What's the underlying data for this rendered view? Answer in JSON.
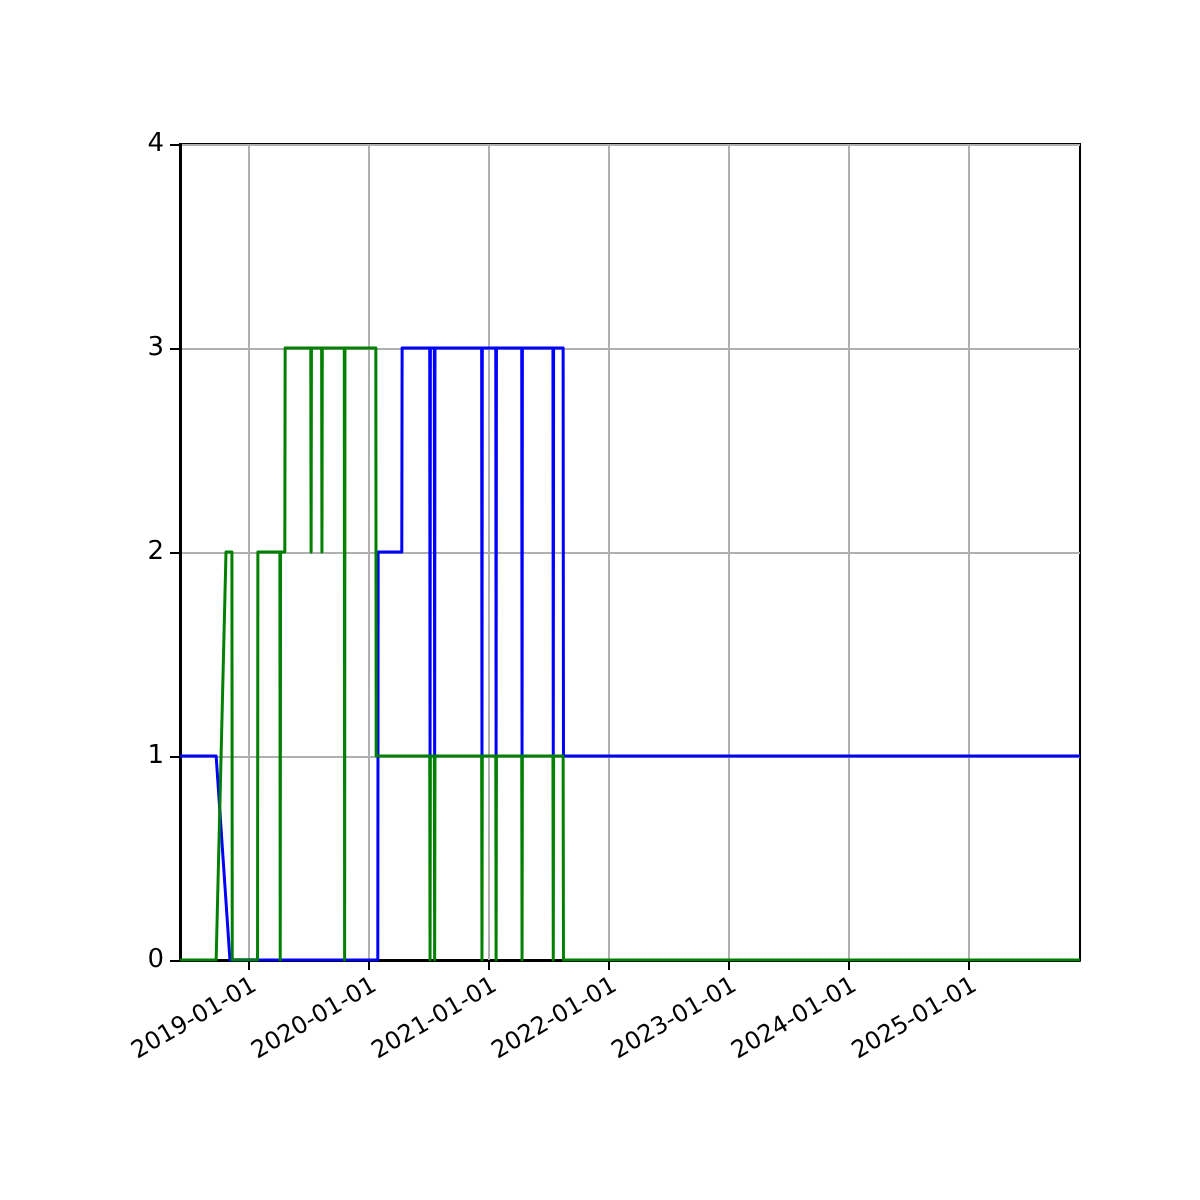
{
  "chart_data": {
    "type": "line",
    "x": [
      "2018-06-08",
      "2018-09-26",
      "2018-11-07",
      "2020-01-31",
      "2020-02-01",
      "2020-04-13",
      "2020-04-14",
      "2020-07-07",
      "2020-07-08",
      "2020-07-09",
      "2020-07-21",
      "2020-07-22",
      "2020-07-23",
      "2020-12-12",
      "2020-12-13",
      "2020-12-14",
      "2021-01-24",
      "2021-01-25",
      "2021-01-26",
      "2021-04-13",
      "2021-04-14",
      "2021-04-15",
      "2021-07-17",
      "2021-07-18",
      "2021-07-19",
      "2021-08-17",
      "2021-08-18",
      "2025-12-07"
    ],
    "series": [
      {
        "color": "#0000ff",
        "values": [
          1,
          1,
          0,
          0,
          2,
          2,
          3,
          3,
          1,
          3,
          3,
          1,
          3,
          3,
          1,
          3,
          3,
          1,
          3,
          3,
          1,
          3,
          3,
          1,
          3,
          3,
          1,
          1
        ]
      },
      {
        "color": "#008000",
        "x": [
          "2018-06-08",
          "2018-09-26",
          "2018-10-26",
          "2018-11-13",
          "2018-11-14",
          "2019-01-30",
          "2019-01-31",
          "2019-04-08",
          "2019-04-09",
          "2019-04-10",
          "2019-04-23",
          "2019-04-24",
          "2019-07-11",
          "2019-07-12",
          "2019-07-13",
          "2019-08-13",
          "2019-08-14",
          "2019-08-15",
          "2019-10-21",
          "2019-10-22",
          "2019-10-23",
          "2020-01-25",
          "2020-01-26",
          "2020-07-07",
          "2020-07-08",
          "2020-07-09",
          "2020-07-21",
          "2020-07-22",
          "2020-07-23",
          "2020-12-12",
          "2020-12-13",
          "2020-12-14",
          "2021-01-24",
          "2021-01-25",
          "2021-01-26",
          "2021-04-13",
          "2021-04-14",
          "2021-04-15",
          "2021-07-17",
          "2021-07-18",
          "2021-07-19",
          "2021-08-17",
          "2021-08-18",
          "2025-12-07"
        ],
        "values": [
          0,
          0,
          2,
          2,
          0,
          0,
          2,
          2,
          0,
          2,
          2,
          3,
          3,
          2,
          3,
          3,
          2,
          3,
          3,
          0,
          3,
          3,
          1,
          1,
          0,
          1,
          1,
          0,
          1,
          1,
          0,
          1,
          1,
          0,
          1,
          1,
          0,
          1,
          1,
          0,
          1,
          1,
          0,
          0
        ]
      }
    ],
    "xlim": [
      "2018-06-08",
      "2025-12-07"
    ],
    "xticks": [
      "2019-01-01",
      "2020-01-01",
      "2021-01-01",
      "2022-01-01",
      "2023-01-01",
      "2024-01-01",
      "2025-01-01"
    ],
    "ylim": [
      0,
      4
    ],
    "yticks": [
      0,
      1,
      2,
      3,
      4
    ],
    "grid": true
  }
}
